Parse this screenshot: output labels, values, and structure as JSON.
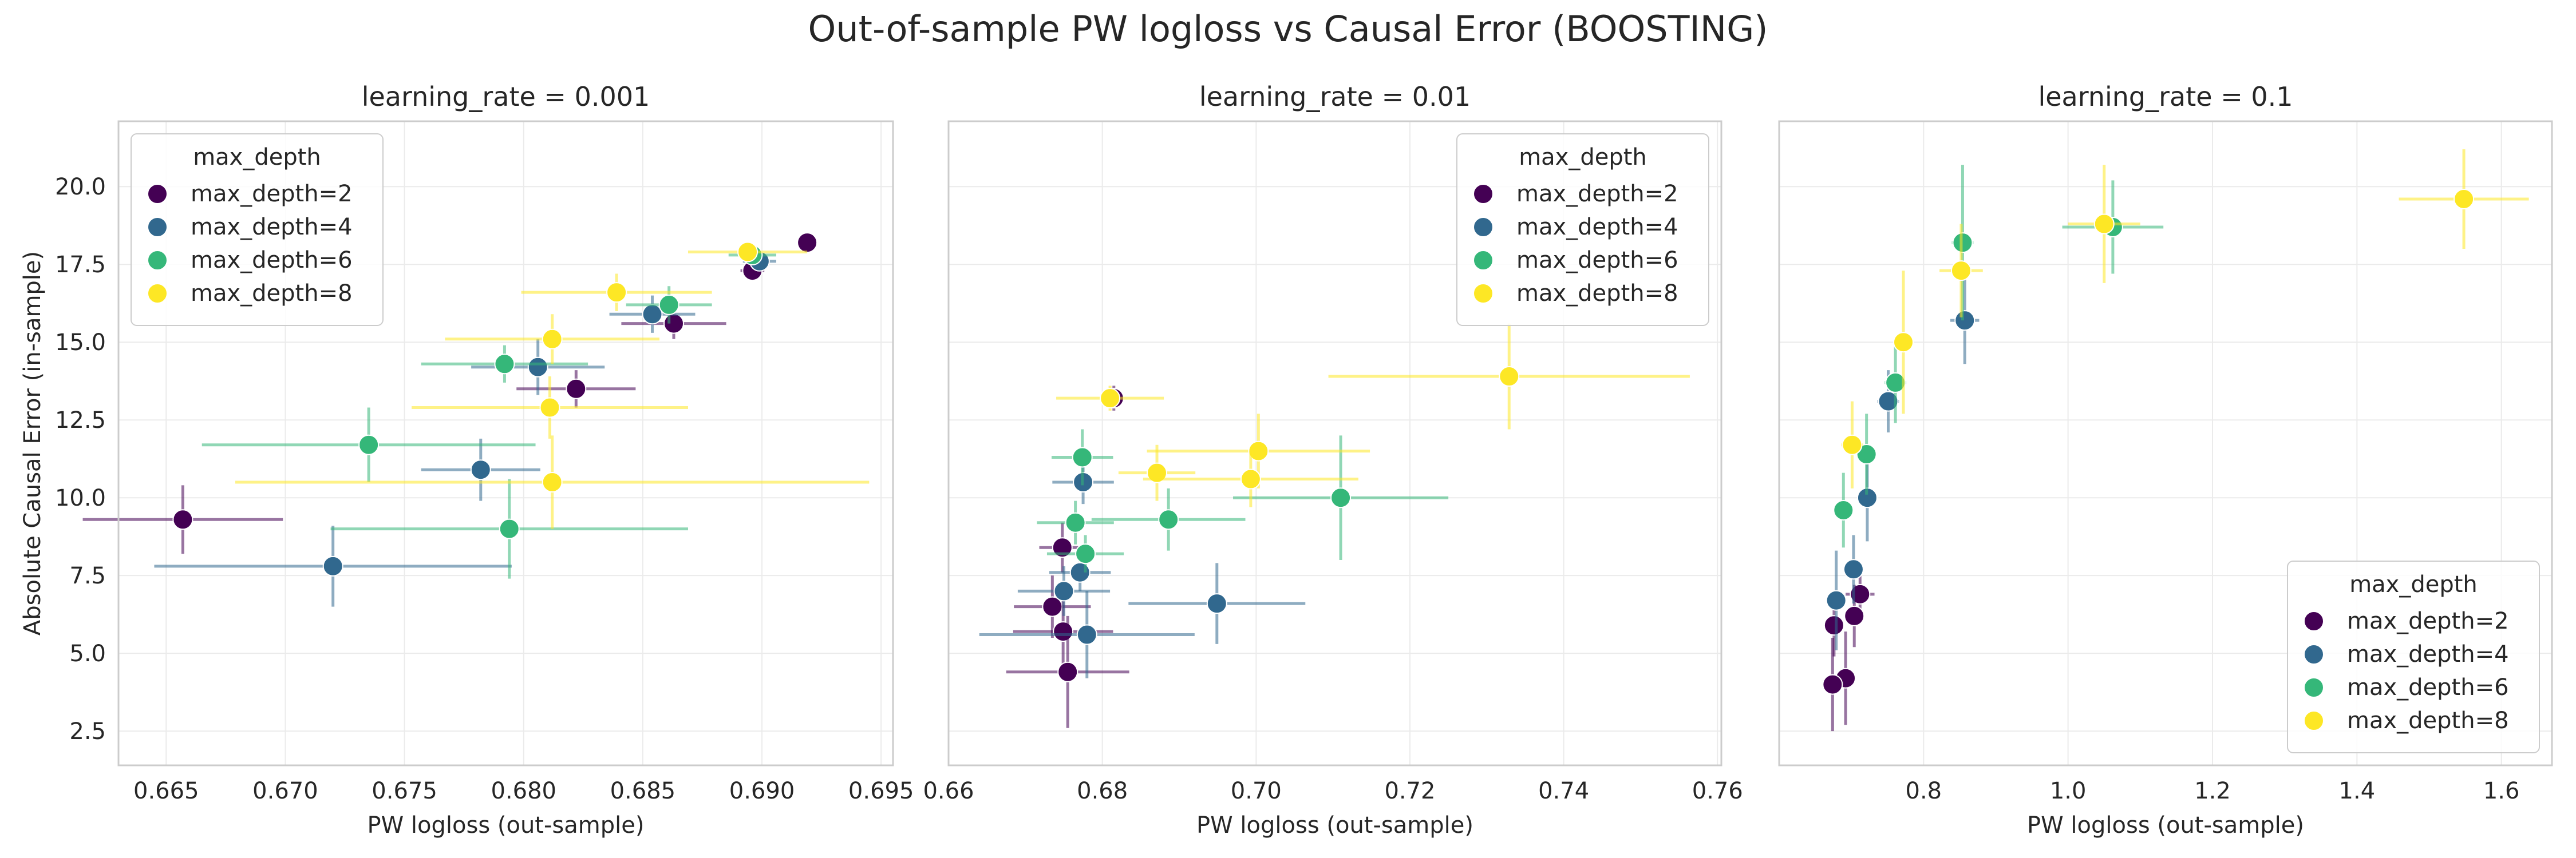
{
  "figure": {
    "title": "Out-of-sample PW logloss vs Causal Error (BOOSTING)"
  },
  "colors": {
    "max_depth=2": "#440154",
    "max_depth=4": "#31688e",
    "max_depth=6": "#35b779",
    "max_depth=8": "#fde725",
    "frame": "#cccccc",
    "grid": "#ebebeb",
    "text": "#262626"
  },
  "chart_data": [
    {
      "type": "scatter",
      "title": "learning_rate = 0.001",
      "xlabel": "PW logloss (out-sample)",
      "ylabel": "Absolute Causal Error (in-sample)",
      "xlim": [
        0.663,
        0.6955
      ],
      "ylim": [
        1.4,
        22.1
      ],
      "xticks": [
        "0.665",
        "0.670",
        "0.675",
        "0.680",
        "0.685",
        "0.690",
        "0.695"
      ],
      "yticks": [
        "2.5",
        "5.0",
        "7.5",
        "10.0",
        "12.5",
        "15.0",
        "17.5",
        "20.0"
      ],
      "grid": true,
      "legend": {
        "title": "max_depth",
        "placement": "upper left",
        "entries": [
          "max_depth=2",
          "max_depth=4",
          "max_depth=6",
          "max_depth=8"
        ]
      },
      "series": [
        {
          "name": "max_depth=2",
          "points": [
            {
              "x": 0.6919,
              "y": 18.2,
              "xerr": 0.0004,
              "yerr": 0.2
            },
            {
              "x": 0.6896,
              "y": 17.3,
              "xerr": 0.0005,
              "yerr": 0.3
            },
            {
              "x": 0.6863,
              "y": 15.6,
              "xerr": 0.0022,
              "yerr": 0.5
            },
            {
              "x": 0.6822,
              "y": 13.5,
              "xerr": 0.0025,
              "yerr": 0.6
            },
            {
              "x": 0.6657,
              "y": 9.3,
              "xerr": 0.0042,
              "yerr": 1.1
            }
          ]
        },
        {
          "name": "max_depth=4",
          "points": [
            {
              "x": 0.6899,
              "y": 17.6,
              "xerr": 0.0007,
              "yerr": 0.3
            },
            {
              "x": 0.6854,
              "y": 15.9,
              "xerr": 0.0018,
              "yerr": 0.6
            },
            {
              "x": 0.6806,
              "y": 14.2,
              "xerr": 0.0028,
              "yerr": 0.9
            },
            {
              "x": 0.6782,
              "y": 10.9,
              "xerr": 0.0025,
              "yerr": 1.0
            },
            {
              "x": 0.672,
              "y": 7.8,
              "xerr": 0.0075,
              "yerr": 1.3
            }
          ]
        },
        {
          "name": "max_depth=6",
          "points": [
            {
              "x": 0.6896,
              "y": 17.8,
              "xerr": 0.001,
              "yerr": 0.3
            },
            {
              "x": 0.6861,
              "y": 16.2,
              "xerr": 0.0018,
              "yerr": 0.6
            },
            {
              "x": 0.6792,
              "y": 14.3,
              "xerr": 0.0035,
              "yerr": 0.6
            },
            {
              "x": 0.6735,
              "y": 11.7,
              "xerr": 0.007,
              "yerr": 1.2
            },
            {
              "x": 0.6794,
              "y": 9.0,
              "xerr": 0.0075,
              "yerr": 1.6
            }
          ]
        },
        {
          "name": "max_depth=8",
          "points": [
            {
              "x": 0.6894,
              "y": 17.9,
              "xerr": 0.0025,
              "yerr": 0.3
            },
            {
              "x": 0.6839,
              "y": 16.6,
              "xerr": 0.004,
              "yerr": 0.6
            },
            {
              "x": 0.6812,
              "y": 15.1,
              "xerr": 0.0045,
              "yerr": 0.8
            },
            {
              "x": 0.6811,
              "y": 12.9,
              "xerr": 0.0058,
              "yerr": 1.0
            },
            {
              "x": 0.6812,
              "y": 10.5,
              "xerr": 0.0133,
              "yerr": 1.5
            }
          ]
        }
      ]
    },
    {
      "type": "scatter",
      "title": "learning_rate = 0.01",
      "xlabel": "PW logloss (out-sample)",
      "ylabel": "",
      "xlim": [
        0.66,
        0.7605
      ],
      "ylim": [
        1.4,
        22.1
      ],
      "xticks": [
        "0.66",
        "0.68",
        "0.70",
        "0.72",
        "0.74",
        "0.76"
      ],
      "yticks": [],
      "grid": true,
      "legend": {
        "title": "max_depth",
        "placement": "upper right",
        "entries": [
          "max_depth=2",
          "max_depth=4",
          "max_depth=6",
          "max_depth=8"
        ]
      },
      "series": [
        {
          "name": "max_depth=2",
          "points": [
            {
              "x": 0.6815,
              "y": 13.2,
              "xerr": 0.001,
              "yerr": 0.4
            },
            {
              "x": 0.6748,
              "y": 8.4,
              "xerr": 0.003,
              "yerr": 0.8
            },
            {
              "x": 0.6735,
              "y": 6.5,
              "xerr": 0.005,
              "yerr": 1.0
            },
            {
              "x": 0.6749,
              "y": 5.7,
              "xerr": 0.0065,
              "yerr": 1.4
            },
            {
              "x": 0.6755,
              "y": 4.4,
              "xerr": 0.008,
              "yerr": 1.8
            }
          ]
        },
        {
          "name": "max_depth=4",
          "points": [
            {
              "x": 0.6775,
              "y": 10.5,
              "xerr": 0.004,
              "yerr": 0.7
            },
            {
              "x": 0.6771,
              "y": 7.6,
              "xerr": 0.004,
              "yerr": 0.6
            },
            {
              "x": 0.675,
              "y": 7.0,
              "xerr": 0.006,
              "yerr": 0.8
            },
            {
              "x": 0.678,
              "y": 5.6,
              "xerr": 0.014,
              "yerr": 1.4
            },
            {
              "x": 0.6949,
              "y": 6.6,
              "xerr": 0.0115,
              "yerr": 1.3
            }
          ]
        },
        {
          "name": "max_depth=6",
          "points": [
            {
              "x": 0.6774,
              "y": 11.3,
              "xerr": 0.004,
              "yerr": 0.9
            },
            {
              "x": 0.6765,
              "y": 9.2,
              "xerr": 0.005,
              "yerr": 0.7
            },
            {
              "x": 0.6778,
              "y": 8.2,
              "xerr": 0.005,
              "yerr": 0.6
            },
            {
              "x": 0.6886,
              "y": 9.3,
              "xerr": 0.01,
              "yerr": 1.0
            },
            {
              "x": 0.711,
              "y": 10.0,
              "xerr": 0.014,
              "yerr": 2.0
            }
          ]
        },
        {
          "name": "max_depth=8",
          "points": [
            {
              "x": 0.681,
              "y": 13.2,
              "xerr": 0.007,
              "yerr": 0.4
            },
            {
              "x": 0.6871,
              "y": 10.8,
              "xerr": 0.005,
              "yerr": 0.9
            },
            {
              "x": 0.7003,
              "y": 11.5,
              "xerr": 0.0145,
              "yerr": 1.2
            },
            {
              "x": 0.6993,
              "y": 10.6,
              "xerr": 0.014,
              "yerr": 0.9
            },
            {
              "x": 0.7329,
              "y": 13.9,
              "xerr": 0.0235,
              "yerr": 1.7
            }
          ]
        }
      ]
    },
    {
      "type": "scatter",
      "title": "learning_rate = 0.1",
      "xlabel": "PW logloss (out-sample)",
      "ylabel": "",
      "xlim": [
        0.6,
        1.67
      ],
      "ylim": [
        1.4,
        22.1
      ],
      "xticks": [
        "0.8",
        "1.0",
        "1.2",
        "1.4",
        "1.6"
      ],
      "yticks": [],
      "grid": true,
      "legend": {
        "title": "max_depth",
        "placement": "lower right",
        "entries": [
          "max_depth=2",
          "max_depth=4",
          "max_depth=6",
          "max_depth=8"
        ]
      },
      "series": [
        {
          "name": "max_depth=2",
          "points": [
            {
              "x": 0.712,
              "y": 6.9,
              "xerr": 0.02,
              "yerr": 0.9
            },
            {
              "x": 0.704,
              "y": 6.2,
              "xerr": 0.01,
              "yerr": 1.0
            },
            {
              "x": 0.676,
              "y": 5.9,
              "xerr": 0.01,
              "yerr": 1.0
            },
            {
              "x": 0.692,
              "y": 4.2,
              "xerr": 0.01,
              "yerr": 1.5
            },
            {
              "x": 0.674,
              "y": 4.0,
              "xerr": 0.01,
              "yerr": 1.5
            }
          ]
        },
        {
          "name": "max_depth=4",
          "points": [
            {
              "x": 0.857,
              "y": 15.7,
              "xerr": 0.02,
              "yerr": 1.4
            },
            {
              "x": 0.751,
              "y": 13.1,
              "xerr": 0.015,
              "yerr": 1.0
            },
            {
              "x": 0.722,
              "y": 10.0,
              "xerr": 0.01,
              "yerr": 1.4
            },
            {
              "x": 0.703,
              "y": 7.7,
              "xerr": 0.01,
              "yerr": 1.1
            },
            {
              "x": 0.679,
              "y": 6.7,
              "xerr": 0.01,
              "yerr": 1.6
            }
          ]
        },
        {
          "name": "max_depth=6",
          "points": [
            {
              "x": 0.854,
              "y": 18.2,
              "xerr": 0.015,
              "yerr": 2.5
            },
            {
              "x": 1.062,
              "y": 18.7,
              "xerr": 0.07,
              "yerr": 1.5
            },
            {
              "x": 0.761,
              "y": 13.7,
              "xerr": 0.015,
              "yerr": 1.3
            },
            {
              "x": 0.721,
              "y": 11.4,
              "xerr": 0.01,
              "yerr": 1.3
            },
            {
              "x": 0.689,
              "y": 9.6,
              "xerr": 0.01,
              "yerr": 1.2
            }
          ]
        },
        {
          "name": "max_depth=8",
          "points": [
            {
              "x": 1.548,
              "y": 19.6,
              "xerr": 0.09,
              "yerr": 1.6
            },
            {
              "x": 1.05,
              "y": 18.8,
              "xerr": 0.05,
              "yerr": 1.9
            },
            {
              "x": 0.852,
              "y": 17.3,
              "xerr": 0.03,
              "yerr": 1.5
            },
            {
              "x": 0.772,
              "y": 15.0,
              "xerr": 0.01,
              "yerr": 2.3
            },
            {
              "x": 0.701,
              "y": 11.7,
              "xerr": 0.015,
              "yerr": 1.4
            }
          ]
        }
      ]
    }
  ]
}
